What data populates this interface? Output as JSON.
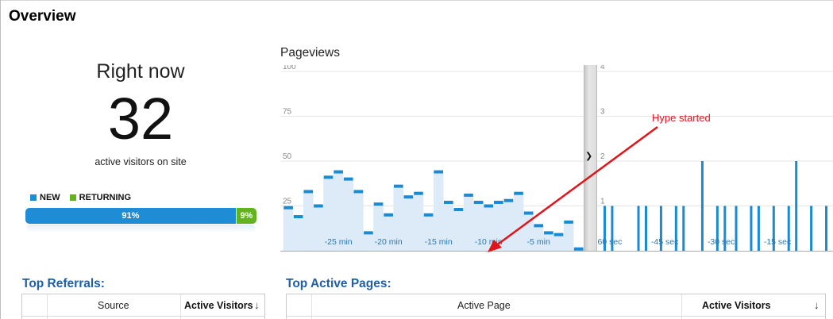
{
  "overview": {
    "title": "Overview"
  },
  "right_now": {
    "label": "Right now",
    "count": "32",
    "caption": "active visitors on site",
    "legend": [
      {
        "label": "NEW",
        "color": "#1f8dd6"
      },
      {
        "label": "RETURNING",
        "color": "#63b320"
      }
    ],
    "new_pct": "91%",
    "returning_pct": "9%",
    "new_fraction": 0.91,
    "returning_fraction": 0.09
  },
  "pageviews": {
    "title": "Pageviews",
    "expand_icon": "chevron-right-icon",
    "annotation": "Hype started"
  },
  "chart_data": [
    {
      "type": "bar",
      "title": "Pageviews",
      "panel": "per-minute",
      "xlabel": "",
      "ylabel": "",
      "ylim": [
        0,
        100
      ],
      "y_ticks": [
        25,
        50,
        75,
        100
      ],
      "x_tick_labels": [
        "-25 min",
        "-20 min",
        "-15 min",
        "-10 min",
        "-5 min"
      ],
      "x_ticks_at": [
        -25,
        -20,
        -15,
        -10,
        -5
      ],
      "x": [
        -30,
        -29,
        -28,
        -27,
        -26,
        -25,
        -24,
        -23,
        -22,
        -21,
        -20,
        -19,
        -18,
        -17,
        -16,
        -15,
        -14,
        -13,
        -12,
        -11,
        -10,
        -9,
        -8,
        -7,
        -6,
        -5,
        -4,
        -3,
        -2,
        -1
      ],
      "values": [
        24,
        19,
        33,
        25,
        41,
        44,
        40,
        33,
        10,
        26,
        20,
        36,
        30,
        32,
        20,
        44,
        27,
        23,
        31,
        27,
        25,
        27,
        28,
        32,
        21,
        14,
        10,
        9,
        16,
        1
      ],
      "grid": true,
      "color": "#1a8ad2",
      "fill": "#dcebf7"
    },
    {
      "type": "bar",
      "panel": "per-second",
      "xlabel": "",
      "ylabel": "",
      "ylim": [
        0,
        4
      ],
      "y_ticks": [
        1,
        2,
        3,
        4
      ],
      "x_tick_labels": [
        "-60 sec",
        "-45 sec",
        "-30 sec",
        "-15 sec"
      ],
      "x_ticks_at": [
        -60,
        -45,
        -30,
        -15
      ],
      "x": [
        -61,
        -59,
        -52,
        -50,
        -46,
        -42,
        -40,
        -35,
        -31,
        -29,
        -26,
        -22,
        -20,
        -16,
        -12,
        -10,
        -6,
        -2
      ],
      "values": [
        1,
        1,
        1,
        1,
        1,
        1,
        1,
        2,
        1,
        1,
        1,
        1,
        1,
        1,
        1,
        2,
        1,
        1
      ],
      "grid": true,
      "color": "#1a8ad2"
    }
  ],
  "top_referrals": {
    "title": "Top Referrals:",
    "columns": [
      "Source",
      "Active Visitors"
    ],
    "sort_icon": "arrow-down-icon"
  },
  "top_active_pages": {
    "title": "Top Active Pages:",
    "columns": [
      "Active Page",
      "Active Visitors"
    ],
    "sort_icon": "arrow-down-icon"
  }
}
